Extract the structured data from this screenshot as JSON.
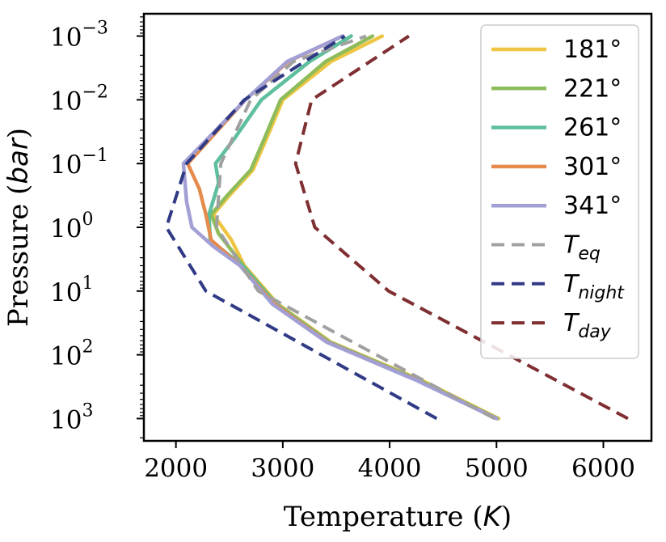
{
  "chart_data": {
    "type": "line",
    "xlabel": "Temperature",
    "xlabel_unit": "K",
    "ylabel": "Pressure",
    "ylabel_unit": "bar",
    "xlim": [
      1700,
      6450
    ],
    "ylim_log10": [
      -3.35,
      3.35
    ],
    "y_scale": "log",
    "y_inverted": true,
    "x_ticks": [
      2000,
      3000,
      4000,
      5000,
      6000
    ],
    "x_tick_labels": [
      "2000",
      "3000",
      "4000",
      "5000",
      "6000"
    ],
    "y_ticks_log10": [
      -3,
      -2,
      -1,
      0,
      1,
      2,
      3
    ],
    "y_tick_mantissa": "10",
    "y_tick_exponents": [
      "−3",
      "−2",
      "−1",
      "0",
      "1",
      "2",
      "3"
    ],
    "legend_position": "top-right",
    "series": [
      {
        "name": "181°",
        "label_text": "181°",
        "color": "#eec643",
        "style": "solid",
        "temperature": [
          5020,
          4300,
          3450,
          2950,
          2640,
          2520,
          2350,
          2500,
          2720,
          2850,
          3000,
          3450,
          3930
        ],
        "log10_pressure": [
          3,
          2.4,
          1.8,
          1.2,
          0.6,
          0.2,
          -0.2,
          -0.5,
          -0.9,
          -1.4,
          -2,
          -2.6,
          -3
        ]
      },
      {
        "name": "221°",
        "label_text": "221°",
        "color": "#8fbc5a",
        "style": "solid",
        "temperature": [
          5010,
          4280,
          3440,
          2940,
          2630,
          2400,
          2330,
          2480,
          2700,
          2830,
          2980,
          3400,
          3840
        ],
        "log10_pressure": [
          3,
          2.4,
          1.8,
          1.2,
          0.6,
          0.1,
          -0.2,
          -0.5,
          -0.9,
          -1.4,
          -2,
          -2.6,
          -3
        ]
      },
      {
        "name": "261°",
        "label_text": "261°",
        "color": "#5dbf9c",
        "style": "solid",
        "temperature": [
          5000,
          4270,
          3430,
          2930,
          2620,
          2320,
          2310,
          2400,
          2370,
          2550,
          2800,
          3250,
          3640
        ],
        "log10_pressure": [
          3,
          2.4,
          1.8,
          1.2,
          0.6,
          0.2,
          -0.2,
          -0.7,
          -1,
          -1.4,
          -2,
          -2.6,
          -3
        ]
      },
      {
        "name": "301°",
        "label_text": "301°",
        "color": "#e58c4c",
        "style": "solid",
        "temperature": [
          5000,
          4260,
          3420,
          2920,
          2600,
          2330,
          2280,
          2220,
          2110,
          2380,
          2650,
          3050,
          3560
        ],
        "log10_pressure": [
          3,
          2.4,
          1.8,
          1.2,
          0.6,
          0.2,
          -0.2,
          -0.6,
          -1,
          -1.5,
          -2,
          -2.6,
          -3
        ]
      },
      {
        "name": "341°",
        "label_text": "341°",
        "color": "#a19fd4",
        "style": "solid",
        "temperature": [
          5000,
          4250,
          3410,
          2900,
          2600,
          2350,
          2150,
          2100,
          2070,
          2360,
          2650,
          3040,
          3560
        ],
        "log10_pressure": [
          3,
          2.4,
          1.8,
          1.2,
          0.6,
          0.3,
          0,
          -0.4,
          -1,
          -1.5,
          -2,
          -2.6,
          -3
        ]
      },
      {
        "name": "T_eq",
        "label_text": "T",
        "label_sub": "eq",
        "color": "#a0a0a0",
        "style": "dashed",
        "temperature": [
          4980,
          2770,
          2380,
          2420,
          2700,
          3100,
          3780
        ],
        "log10_pressure": [
          3,
          1,
          0,
          -1,
          -2,
          -2.6,
          -3
        ]
      },
      {
        "name": "T_night",
        "label_text": "T",
        "label_sub": "night",
        "color": "#303a85",
        "style": "dashed",
        "temperature": [
          4440,
          2280,
          1910,
          2100,
          2640,
          3580
        ],
        "log10_pressure": [
          3,
          1,
          0,
          -1,
          -2,
          -3
        ]
      },
      {
        "name": "T_day",
        "label_text": "T",
        "label_sub": "day",
        "color": "#7f2f32",
        "style": "dashed",
        "temperature": [
          6230,
          3990,
          3300,
          3120,
          3270,
          4180
        ],
        "log10_pressure": [
          3,
          1,
          0,
          -1,
          -2,
          -3
        ]
      }
    ]
  }
}
